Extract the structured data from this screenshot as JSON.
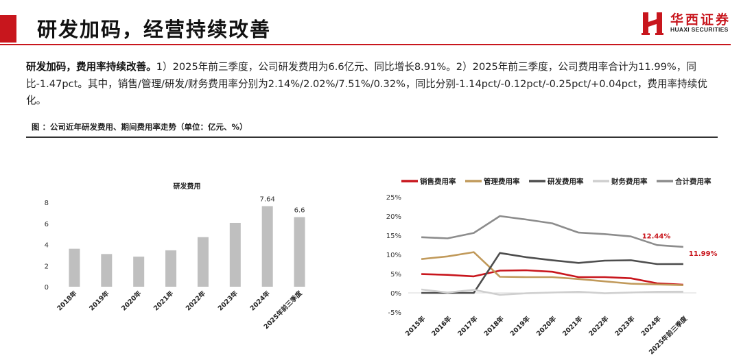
{
  "header": {
    "title": "研发加码，经营持续改善",
    "logo": {
      "cn": "华西证券",
      "en": "HUAXI SECURITIES"
    }
  },
  "body": {
    "lead": "研发加码，费用率持续改善。",
    "text": "1）2025年前三季度，公司研发费用为6.6亿元、同比增长8.91%。2）2025年前三季度，公司费用率合计为11.99%，同比-1.47pct。其中，销售/管理/研发/财务费用率分别为2.14%/2.02%/7.51%/0.32%，同比分别-1.14pct/-0.12pct/-0.25pct/+0.04pct，费用率持续优化。"
  },
  "figure": {
    "caption": "图 ：公司近年研发费用、期间费用率走势（单位：亿元、%）"
  },
  "colors": {
    "accent": "#c8161d",
    "bar": "#bfbfbf"
  },
  "chart_data": [
    {
      "type": "bar",
      "title": "研发费用",
      "categories": [
        "2018年",
        "2019年",
        "2020年",
        "2021年",
        "2022年",
        "2023年",
        "2024年",
        "2025年前三季度"
      ],
      "values": [
        3.6,
        3.1,
        2.85,
        3.45,
        4.7,
        6.05,
        7.64,
        6.6
      ],
      "data_labels": {
        "6": "7.64",
        "7": "6.6"
      },
      "ylim": [
        0,
        8
      ],
      "yticks": [
        "0",
        "2",
        "4",
        "6",
        "8"
      ],
      "grid": false,
      "legend": "none"
    },
    {
      "type": "line",
      "categories": [
        "2015年",
        "2016年",
        "2017年",
        "2018年",
        "2019年",
        "2020年",
        "2021年",
        "2022年",
        "2023年",
        "2024年",
        "2025年前三季度"
      ],
      "series": [
        {
          "name": "销售费用率",
          "color": "#c8161d",
          "values": [
            4.9,
            4.7,
            4.3,
            5.8,
            5.9,
            5.5,
            4.1,
            4.1,
            3.8,
            2.5,
            2.14
          ]
        },
        {
          "name": "管理费用率",
          "color": "#c19a5b",
          "values": [
            8.8,
            9.5,
            10.6,
            4.2,
            4.1,
            4.1,
            3.6,
            3.0,
            2.4,
            2.2,
            2.02
          ]
        },
        {
          "name": "研发费用率",
          "color": "#4d4d4d",
          "values": [
            0,
            0,
            0,
            10.4,
            9.3,
            8.5,
            7.8,
            8.4,
            8.5,
            7.5,
            7.51
          ]
        },
        {
          "name": "财务费用率",
          "color": "#cfcfcf",
          "values": [
            0.9,
            0.1,
            0.8,
            -0.5,
            -0.1,
            0.1,
            0.3,
            -0.1,
            0.1,
            0.3,
            0.32
          ]
        },
        {
          "name": "合计费用率",
          "color": "#8c8c8c",
          "values": [
            14.5,
            14.2,
            15.6,
            20.0,
            19.1,
            18.1,
            15.7,
            15.3,
            14.7,
            12.44,
            11.99
          ]
        }
      ],
      "annotations": [
        {
          "text": "12.44%",
          "category": "2024年",
          "value": 12.44
        },
        {
          "text": "11.99%",
          "category": "2025年前三季度",
          "value": 11.99
        }
      ],
      "ylim": [
        -5,
        25
      ],
      "yticks": [
        "-5%",
        "0%",
        "5%",
        "10%",
        "15%",
        "20%",
        "25%"
      ],
      "grid": false,
      "legend": "top"
    }
  ]
}
